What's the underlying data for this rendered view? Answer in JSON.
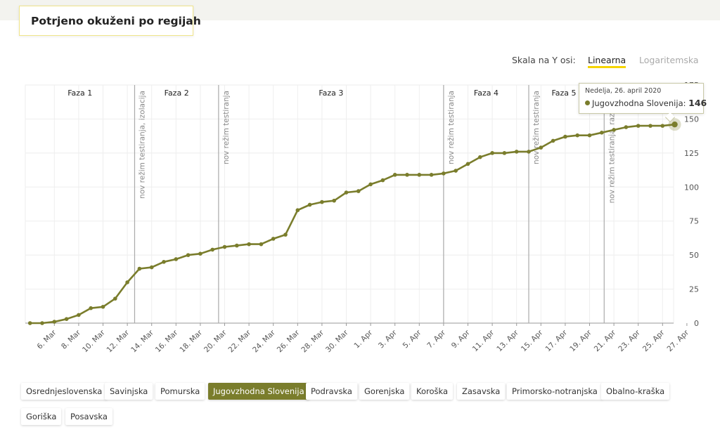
{
  "page": {
    "title": "Potrjeno okuženi po regijah"
  },
  "scale": {
    "label": "Skala na Y osi:",
    "options": [
      "Linearna",
      "Logaritemska"
    ],
    "selected": "Linearna"
  },
  "tooltip": {
    "date": "Nedelja, 26. april 2020",
    "series": "Jugovzhodna Slovenija",
    "value": "146"
  },
  "regions": [
    {
      "label": "Osrednjeslovenska",
      "active": false
    },
    {
      "label": "Savinjska",
      "active": false
    },
    {
      "label": "Pomurska",
      "active": false
    },
    {
      "label": "Jugovzhodna Slovenija",
      "active": true
    },
    {
      "label": "Podravska",
      "active": false
    },
    {
      "label": "Gorenjska",
      "active": false
    },
    {
      "label": "Koroška",
      "active": false
    },
    {
      "label": "Zasavska",
      "active": false
    },
    {
      "label": "Primorsko-notranjska",
      "active": false
    },
    {
      "label": "Obalno-kraška",
      "active": false
    },
    {
      "label": "Goriška",
      "active": false
    },
    {
      "label": "Posavska",
      "active": false
    }
  ],
  "colors": {
    "series": "#7a7d2c",
    "accent": "#f5d400",
    "grid": "#eeeeee",
    "phase_line": "#aaaaaa"
  },
  "chart_data": {
    "type": "line",
    "start_date": "2020-03-04",
    "x_tick_labels": [
      "6. Mar",
      "8. Mar",
      "10. Mar",
      "12. Mar",
      "14. Mar",
      "16. Mar",
      "18. Mar",
      "20. Mar",
      "22. Mar",
      "24. Mar",
      "26. Mar",
      "28. Mar",
      "30. Mar",
      "1. Apr",
      "3. Apr",
      "5. Apr",
      "7. Apr",
      "9. Apr",
      "11. Apr",
      "13. Apr",
      "15. Apr",
      "17. Apr",
      "19. Apr",
      "21. Apr",
      "23. Apr",
      "25. Apr",
      "27. Apr"
    ],
    "y_ticks": [
      0,
      25,
      50,
      75,
      100,
      125,
      150,
      175
    ],
    "ylim": [
      0,
      175
    ],
    "y_axis_side": "right",
    "grid": true,
    "series": [
      {
        "name": "Jugovzhodna Slovenija",
        "values": [
          0,
          0,
          1,
          3,
          6,
          11,
          12,
          18,
          30,
          40,
          41,
          45,
          47,
          50,
          51,
          54,
          56,
          57,
          58,
          58,
          62,
          65,
          83,
          87,
          89,
          90,
          96,
          97,
          102,
          105,
          109,
          109,
          109,
          109,
          110,
          112,
          117,
          122,
          125,
          125,
          126,
          126,
          129,
          134,
          137,
          138,
          138,
          140,
          142,
          144,
          145,
          145,
          145,
          146
        ]
      }
    ],
    "phases": [
      {
        "label": "Faza 1"
      },
      {
        "label": "Faza 2"
      },
      {
        "label": "Faza 3"
      },
      {
        "label": "Faza 4"
      },
      {
        "label": "Faza 5"
      }
    ],
    "markers": [
      {
        "label": "nov režim testiranja, izolacija",
        "date_index": 8.6
      },
      {
        "label": "nov režim testiranja",
        "date_index": 15.5
      },
      {
        "label": "nov režim testiranja",
        "date_index": 34.0
      },
      {
        "label": "nov režim testiranja",
        "date_index": 41.0
      },
      {
        "label": "nov režim testiranja, razširitev",
        "date_index": 47.2
      }
    ],
    "highlight_index": 53
  }
}
